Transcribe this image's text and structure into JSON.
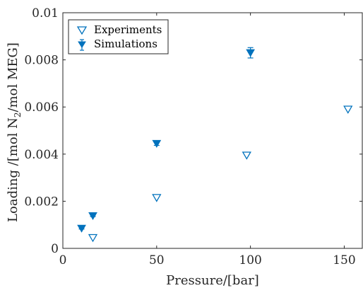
{
  "chart_data": {
    "type": "scatter",
    "xlabel": "Pressure/[bar]",
    "ylabel_parts": {
      "pre": "Loading /[mol N",
      "sub": "2",
      "post": "/mol MEG]"
    },
    "xlim": [
      0,
      160
    ],
    "ylim": [
      0,
      0.01
    ],
    "x_ticks": [
      0,
      50,
      100,
      150
    ],
    "x_tick_labels": [
      "0",
      "50",
      "100",
      "150"
    ],
    "y_ticks": [
      0,
      0.002,
      0.004,
      0.006,
      0.008,
      0.01
    ],
    "y_tick_labels": [
      "0",
      "0.002",
      "0.004",
      "0.006",
      "0.008",
      "0.01"
    ],
    "grid": false,
    "legend_position": "top-left",
    "series": [
      {
        "name": "Experiments",
        "marker": "triangle-down-open",
        "color": "#0072BD",
        "points": [
          {
            "x": 16,
            "y": 0.00045
          },
          {
            "x": 50,
            "y": 0.00215
          },
          {
            "x": 98,
            "y": 0.00395
          },
          {
            "x": 152,
            "y": 0.0059
          }
        ]
      },
      {
        "name": "Simulations",
        "marker": "triangle-down-filled-errorbar",
        "color": "#0072BD",
        "points": [
          {
            "x": 10,
            "y": 0.00085,
            "err": 3e-05
          },
          {
            "x": 16,
            "y": 0.00138,
            "err": 3e-05
          },
          {
            "x": 50,
            "y": 0.00445,
            "err": 8e-05
          },
          {
            "x": 100,
            "y": 0.0083,
            "err": 0.00022
          }
        ]
      }
    ]
  }
}
